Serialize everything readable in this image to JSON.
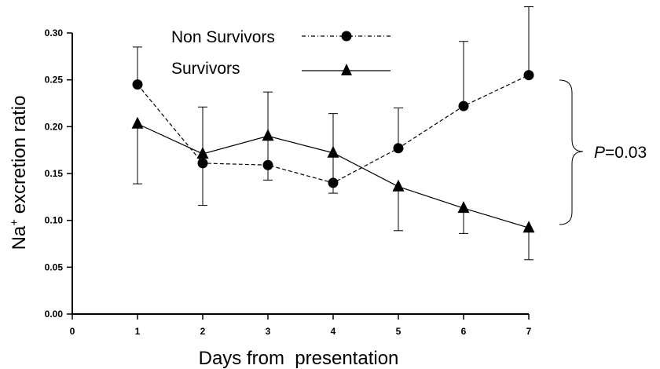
{
  "chart_data": {
    "type": "line",
    "xlabel": "Days from  presentation",
    "ylabel_main": "Na",
    "ylabel_sup": "+",
    "ylabel_rest": " excretion ratio",
    "xlim": [
      0,
      7
    ],
    "ylim": [
      0,
      0.3
    ],
    "x_ticks": [
      "0",
      "1",
      "2",
      "3",
      "4",
      "5",
      "6",
      "7"
    ],
    "y_ticks": [
      "0.00",
      "0.05",
      "0.10",
      "0.15",
      "0.20",
      "0.25",
      "0.30"
    ],
    "grid": false,
    "legend_position": "top-center",
    "series": [
      {
        "name": "Non Survivors",
        "marker": "circle",
        "line_style": "dashed",
        "x": [
          1,
          2,
          3,
          4,
          5,
          6,
          7
        ],
        "y": [
          0.245,
          0.161,
          0.159,
          0.14,
          0.177,
          0.222,
          0.255
        ],
        "error": [
          0.04,
          0.06,
          0.078,
          0.074,
          0.043,
          0.069,
          0.073
        ],
        "error_direction": "up"
      },
      {
        "name": "Survivors",
        "marker": "triangle",
        "line_style": "solid",
        "x": [
          1,
          2,
          3,
          4,
          5,
          6,
          7
        ],
        "y": [
          0.203,
          0.171,
          0.19,
          0.172,
          0.136,
          0.113,
          0.092
        ],
        "error": [
          0.064,
          0.055,
          0.047,
          0.043,
          0.047,
          0.027,
          0.034
        ],
        "error_direction": "down"
      }
    ],
    "annotation": {
      "p_italic": "P",
      "p_rest": "=0.03"
    }
  }
}
